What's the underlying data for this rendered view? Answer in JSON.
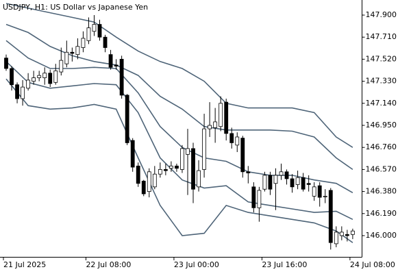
{
  "chart_data": {
    "type": "candlestick",
    "title": "USDJPY, H1:  US Dollar vs Japanese Yen",
    "categories": [
      "21 Jul 2025",
      null,
      null,
      null,
      null,
      null,
      null,
      null,
      null,
      null,
      null,
      null,
      null,
      null,
      null,
      "22 Jul 08:00",
      null,
      null,
      null,
      null,
      null,
      null,
      null,
      null,
      null,
      null,
      null,
      null,
      null,
      null,
      null,
      "23 Jul 00:00",
      null,
      null,
      null,
      null,
      null,
      null,
      null,
      null,
      null,
      null,
      null,
      null,
      null,
      null,
      null,
      "23 Jul 16:00",
      null,
      null,
      null,
      null,
      null,
      null,
      null,
      null,
      null,
      null,
      null,
      null,
      null,
      null,
      null,
      "24 Jul 08:00"
    ],
    "open": [
      147.53,
      147.44,
      147.3,
      147.18,
      147.27,
      147.33,
      147.36,
      147.36,
      147.4,
      147.32,
      147.41,
      147.48,
      147.58,
      147.56,
      147.62,
      147.68,
      147.76,
      147.82,
      147.71,
      147.56,
      147.47,
      147.52,
      147.21,
      146.82,
      146.6,
      146.47,
      146.38,
      146.42,
      146.53,
      146.57,
      146.58,
      146.6,
      146.57,
      146.7,
      146.75,
      146.42,
      146.57,
      146.92,
      146.93,
      146.94,
      147.15,
      146.88,
      146.78,
      146.84,
      146.55,
      146.42,
      146.24,
      146.4,
      146.52,
      146.45,
      146.52,
      146.55,
      146.49,
      146.44,
      146.5,
      146.45,
      146.34,
      146.43,
      146.34,
      146.39,
      145.93,
      146.0,
      146.01,
      146.01
    ],
    "high": [
      147.56,
      147.46,
      147.32,
      147.34,
      147.4,
      147.42,
      147.42,
      147.45,
      147.43,
      147.48,
      147.62,
      147.68,
      147.62,
      147.7,
      147.76,
      147.88,
      147.9,
      147.86,
      147.73,
      147.6,
      147.52,
      147.55,
      147.22,
      146.84,
      146.63,
      146.48,
      146.58,
      146.6,
      146.63,
      146.62,
      146.64,
      146.62,
      146.78,
      146.92,
      146.8,
      146.65,
      147.05,
      147.15,
      147.1,
      147.2,
      147.18,
      146.93,
      146.89,
      146.86,
      146.6,
      146.46,
      146.42,
      146.55,
      146.55,
      146.58,
      146.62,
      146.57,
      146.53,
      146.56,
      146.54,
      146.52,
      146.46,
      146.46,
      146.4,
      146.41,
      146.08,
      146.08,
      146.05,
      146.06
    ],
    "low": [
      147.42,
      147.25,
      147.14,
      147.12,
      147.25,
      147.3,
      147.33,
      147.3,
      147.28,
      147.3,
      147.38,
      147.45,
      147.5,
      147.52,
      147.58,
      147.65,
      147.72,
      147.68,
      147.58,
      147.43,
      147.43,
      147.18,
      146.78,
      146.55,
      146.42,
      146.34,
      146.33,
      146.4,
      146.5,
      146.52,
      146.55,
      146.55,
      146.54,
      146.35,
      146.28,
      146.38,
      146.5,
      146.85,
      146.8,
      146.9,
      146.82,
      146.75,
      146.72,
      146.5,
      146.45,
      146.2,
      146.12,
      146.38,
      146.35,
      146.22,
      146.48,
      146.44,
      146.37,
      146.4,
      146.38,
      146.38,
      146.3,
      146.25,
      146.28,
      145.88,
      145.9,
      145.96,
      145.95,
      145.97
    ],
    "close": [
      147.44,
      147.3,
      147.18,
      147.28,
      147.34,
      147.36,
      147.38,
      147.4,
      147.31,
      147.42,
      147.51,
      147.58,
      147.57,
      147.63,
      147.7,
      147.79,
      147.82,
      147.71,
      147.62,
      147.45,
      147.46,
      147.21,
      146.8,
      146.59,
      146.45,
      146.36,
      146.55,
      146.53,
      146.57,
      146.56,
      146.6,
      146.58,
      146.75,
      146.75,
      146.4,
      146.56,
      146.92,
      146.95,
      146.98,
      147.14,
      146.88,
      146.8,
      146.85,
      146.55,
      146.54,
      146.24,
      146.39,
      146.52,
      146.4,
      146.52,
      146.55,
      146.49,
      146.42,
      146.5,
      146.4,
      146.44,
      146.42,
      146.33,
      146.34,
      145.94,
      146.03,
      146.03,
      146.0,
      146.04
    ],
    "up_color": "#ffffff",
    "down_color": "#000000",
    "series": [
      {
        "color": "#4e6478",
        "x": [
          0,
          4,
          8,
          12,
          16,
          20,
          24,
          28,
          32,
          36,
          40,
          44,
          48,
          52,
          56,
          60,
          63
        ],
        "values": [
          148.0,
          147.96,
          147.92,
          147.88,
          147.84,
          147.71,
          147.59,
          147.5,
          147.44,
          147.33,
          147.14,
          147.1,
          147.1,
          147.1,
          147.06,
          146.85,
          146.76
        ]
      },
      {
        "color": "#4e6478",
        "x": [
          0,
          4,
          8,
          12,
          16,
          20,
          24,
          28,
          32,
          36,
          40,
          44,
          48,
          52,
          56,
          60,
          63
        ],
        "values": [
          147.82,
          147.75,
          147.63,
          147.55,
          147.5,
          147.47,
          147.38,
          147.2,
          147.09,
          146.94,
          146.91,
          146.91,
          146.91,
          146.9,
          146.85,
          146.67,
          146.57
        ]
      },
      {
        "color": "#4e6478",
        "x": [
          0,
          4,
          8,
          12,
          16,
          20,
          24,
          28,
          32,
          36,
          40,
          44,
          48,
          52,
          56,
          60,
          63
        ],
        "values": [
          147.68,
          147.53,
          147.44,
          147.44,
          147.45,
          147.44,
          147.23,
          146.94,
          146.76,
          146.67,
          146.64,
          146.55,
          146.52,
          146.52,
          146.48,
          146.45,
          146.37
        ]
      },
      {
        "color": "#4e6478",
        "x": [
          0,
          4,
          8,
          12,
          16,
          20,
          24,
          28,
          32,
          36,
          40,
          44,
          48,
          52,
          56,
          60,
          63
        ],
        "values": [
          147.5,
          147.32,
          147.27,
          147.29,
          147.31,
          147.3,
          147.06,
          146.67,
          146.48,
          146.41,
          146.43,
          146.29,
          146.26,
          146.23,
          146.2,
          146.21,
          146.14
        ]
      },
      {
        "color": "#4e6478",
        "x": [
          0,
          4,
          8,
          12,
          16,
          20,
          24,
          28,
          32,
          36,
          40,
          44,
          48,
          52,
          56,
          60,
          63
        ],
        "values": [
          147.35,
          147.12,
          147.09,
          147.1,
          147.13,
          147.09,
          146.67,
          146.26,
          146.0,
          146.02,
          146.26,
          146.2,
          146.17,
          146.14,
          146.11,
          146.04,
          145.94
        ]
      }
    ],
    "ylim": [
      145.817,
      148.03
    ],
    "yticks": [
      {
        "value": 147.9,
        "label": "147.900"
      },
      {
        "value": 147.71,
        "label": "147.710"
      },
      {
        "value": 147.52,
        "label": "147.520"
      },
      {
        "value": 147.33,
        "label": "147.330"
      },
      {
        "value": 147.14,
        "label": "147.140"
      },
      {
        "value": 146.95,
        "label": "146.950"
      },
      {
        "value": 146.76,
        "label": "146.760"
      },
      {
        "value": 146.57,
        "label": "146.570"
      },
      {
        "value": 146.38,
        "label": "146.380"
      },
      {
        "value": 146.19,
        "label": "146.190"
      },
      {
        "value": 146.0,
        "label": "146.000"
      }
    ]
  }
}
